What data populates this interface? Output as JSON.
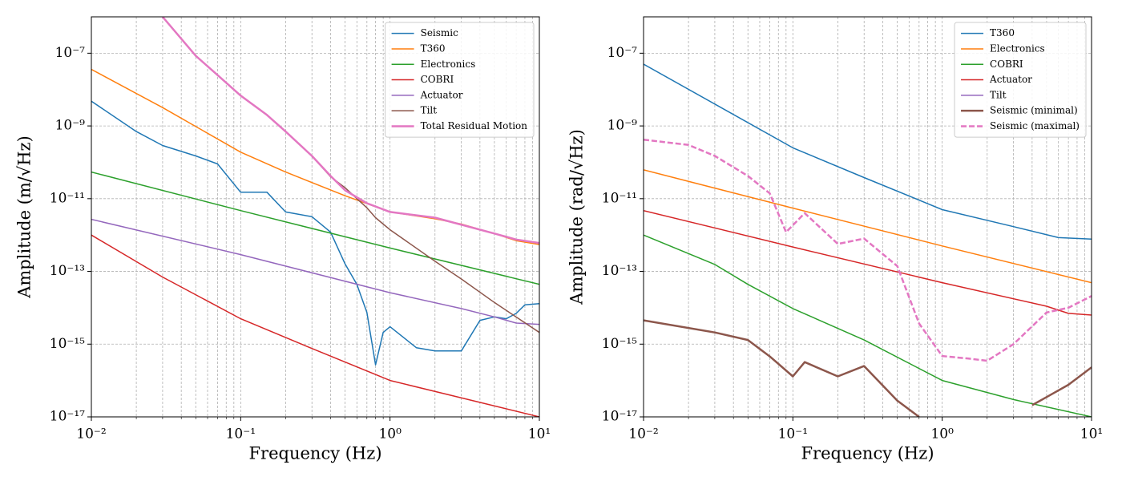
{
  "chart_data": [
    {
      "type": "line",
      "xlabel": "Frequency (Hz)",
      "ylabel": "Amplitude (m/√Hz)",
      "xscale": "log",
      "yscale": "log",
      "xlim": [
        0.01,
        10
      ],
      "ylim": [
        1e-17,
        1e-06
      ],
      "xticks": [
        {
          "value": 0.01,
          "label": "10⁻²"
        },
        {
          "value": 0.1,
          "label": "10⁻¹"
        },
        {
          "value": 1,
          "label": "10⁰"
        },
        {
          "value": 10,
          "label": "10¹"
        }
      ],
      "yticks": [
        {
          "value": 1e-17,
          "label": "10⁻¹⁷"
        },
        {
          "value": 1e-15,
          "label": "10⁻¹⁵"
        },
        {
          "value": 1e-13,
          "label": "10⁻¹³"
        },
        {
          "value": 1e-11,
          "label": "10⁻¹¹"
        },
        {
          "value": 1e-09,
          "label": "10⁻⁹"
        },
        {
          "value": 1e-07,
          "label": "10⁻⁷"
        }
      ],
      "grid": true,
      "minor_grid": true,
      "legend": "upper right",
      "series": [
        {
          "name": "Seismic",
          "color": "#1f77b4",
          "linewidth": 1.5,
          "x": [
            0.01,
            0.02,
            0.03,
            0.05,
            0.07,
            0.1,
            0.15,
            0.2,
            0.3,
            0.4,
            0.5,
            0.6,
            0.7,
            0.8,
            0.9,
            1,
            1.5,
            2,
            3,
            4,
            5,
            6,
            7,
            8,
            10
          ],
          "values": [
            4.8e-09,
            7e-10,
            2.9e-10,
            1.5e-10,
            9e-11,
            1.5e-11,
            1.5e-11,
            4.3e-12,
            3.2e-12,
            1.2e-12,
            1.6e-13,
            4.4e-14,
            7.4e-15,
            2.7e-16,
            2.1e-15,
            3e-15,
            8e-16,
            6.5e-16,
            6.5e-16,
            4.5e-15,
            5.6e-15,
            5e-15,
            7e-15,
            1.2e-14,
            1.3e-14
          ]
        },
        {
          "name": "T360",
          "color": "#ff7f0e",
          "linewidth": 1.5,
          "x": [
            0.01,
            0.03,
            0.1,
            0.2,
            0.5,
            1,
            2,
            3,
            5,
            7,
            10
          ],
          "values": [
            3.6e-08,
            3.2e-09,
            1.9e-10,
            5.4e-11,
            1.2e-11,
            4.3e-12,
            2.8e-12,
            2e-12,
            1.1e-12,
            7e-13,
            5.5e-13
          ]
        },
        {
          "name": "Electronics",
          "color": "#2ca02c",
          "linewidth": 1.5,
          "x": [
            0.01,
            0.1,
            1,
            10
          ],
          "values": [
            5.4e-11,
            4.7e-12,
            4.4e-13,
            4.4e-14
          ]
        },
        {
          "name": "COBRI",
          "color": "#d62728",
          "linewidth": 1.5,
          "x": [
            0.01,
            0.03,
            0.1,
            0.3,
            1,
            10
          ],
          "values": [
            1e-12,
            7e-14,
            5e-15,
            7.6e-16,
            1e-16,
            1e-17
          ]
        },
        {
          "name": "Actuator",
          "color": "#9467bd",
          "linewidth": 1.5,
          "x": [
            0.01,
            0.1,
            1,
            3,
            5,
            7,
            10
          ],
          "values": [
            2.7e-12,
            2.9e-13,
            2.6e-14,
            9.5e-15,
            5.6e-15,
            3.8e-15,
            3.5e-15
          ]
        },
        {
          "name": "Tilt",
          "color": "#8c564b",
          "linewidth": 1.5,
          "x": [
            0.03,
            0.05,
            0.07,
            0.1,
            0.15,
            0.2,
            0.3,
            0.4,
            0.5,
            0.6,
            0.7,
            0.8,
            0.9,
            1,
            2,
            3,
            5,
            10
          ],
          "values": [
            1e-06,
            8.5e-08,
            2.5e-08,
            6.8e-09,
            2e-09,
            7e-10,
            1.5e-10,
            4e-11,
            2e-11,
            1e-11,
            5.6e-12,
            3e-12,
            2e-12,
            1.4e-12,
            1.9e-13,
            6.2e-14,
            1.4e-14,
            2.1e-15
          ]
        },
        {
          "name": "Total Residual Motion",
          "color": "#e377c2",
          "linewidth": 2.5,
          "x": [
            0.03,
            0.05,
            0.07,
            0.1,
            0.15,
            0.2,
            0.3,
            0.4,
            0.5,
            0.7,
            1,
            2,
            5,
            7,
            10
          ],
          "values": [
            1e-06,
            8.5e-08,
            2.5e-08,
            6.8e-09,
            2e-09,
            7e-10,
            1.5e-10,
            4.2e-11,
            1.7e-11,
            7.5e-12,
            4.3e-12,
            3e-12,
            1.1e-12,
            7.5e-13,
            6e-13
          ]
        }
      ]
    },
    {
      "type": "line",
      "xlabel": "Frequency (Hz)",
      "ylabel": "Amplitude (rad/√Hz)",
      "xscale": "log",
      "yscale": "log",
      "xlim": [
        0.01,
        10
      ],
      "ylim": [
        1e-17,
        1e-06
      ],
      "xticks": [
        {
          "value": 0.01,
          "label": "10⁻²"
        },
        {
          "value": 0.1,
          "label": "10⁻¹"
        },
        {
          "value": 1,
          "label": "10⁰"
        },
        {
          "value": 10,
          "label": "10¹"
        }
      ],
      "yticks": [
        {
          "value": 1e-17,
          "label": "10⁻¹⁷"
        },
        {
          "value": 1e-15,
          "label": "10⁻¹⁵"
        },
        {
          "value": 1e-13,
          "label": "10⁻¹³"
        },
        {
          "value": 1e-11,
          "label": "10⁻¹¹"
        },
        {
          "value": 1e-09,
          "label": "10⁻⁹"
        },
        {
          "value": 1e-07,
          "label": "10⁻⁷"
        }
      ],
      "grid": true,
      "minor_grid": true,
      "legend": "upper right",
      "series": [
        {
          "name": "T360",
          "color": "#1f77b4",
          "linewidth": 1.5,
          "x": [
            0.01,
            0.03,
            0.1,
            0.3,
            1,
            3,
            6,
            10
          ],
          "values": [
            5e-08,
            4e-09,
            2.5e-10,
            3.8e-11,
            5e-12,
            1.7e-12,
            8.5e-13,
            7.7e-13
          ]
        },
        {
          "name": "Electronics",
          "color": "#ff7f0e",
          "linewidth": 1.5,
          "x": [
            0.01,
            0.1,
            1,
            10
          ],
          "values": [
            6.2e-11,
            5.5e-12,
            5e-13,
            4.9e-14
          ]
        },
        {
          "name": "COBRI",
          "color": "#2ca02c",
          "linewidth": 1.5,
          "x": [
            0.01,
            0.03,
            0.05,
            0.1,
            0.3,
            1,
            3,
            10
          ],
          "values": [
            1e-12,
            1.55e-13,
            4.4e-14,
            9.5e-15,
            1.3e-15,
            1e-16,
            3e-17,
            1e-17
          ]
        },
        {
          "name": "Actuator",
          "color": "#d62728",
          "linewidth": 1.5,
          "x": [
            0.01,
            0.1,
            1,
            5,
            7,
            10
          ],
          "values": [
            4.7e-12,
            4.7e-13,
            4.9e-14,
            1.1e-14,
            7e-15,
            6.3e-15
          ]
        },
        {
          "name": "Tilt",
          "color": "#9467bd",
          "linewidth": 1.5,
          "x": [
            0.01,
            10
          ],
          "values": [
            null,
            null
          ]
        },
        {
          "name": "Seismic (minimal)",
          "color": "#8c564b",
          "linewidth": 2.5,
          "x": [
            0.01,
            0.03,
            0.05,
            0.07,
            0.1,
            0.12,
            0.2,
            0.3,
            0.5,
            0.7,
            1,
            2,
            4,
            5,
            7,
            10
          ],
          "values": [
            4.5e-15,
            2.1e-15,
            1.3e-15,
            4.6e-16,
            1.3e-16,
            3.2e-16,
            1.3e-16,
            2.5e-16,
            2.8e-17,
            1e-17,
            null,
            null,
            2.1e-17,
            3.5e-17,
            7.6e-17,
            2.3e-16
          ]
        },
        {
          "name": "Seismic (maximal)",
          "color": "#e377c2",
          "linewidth": 2.5,
          "linestyle": "dashed",
          "x": [
            0.01,
            0.02,
            0.03,
            0.05,
            0.07,
            0.09,
            0.12,
            0.2,
            0.3,
            0.5,
            0.7,
            1,
            1.5,
            2,
            3,
            5,
            7,
            10
          ],
          "values": [
            4.2e-10,
            3e-10,
            1.5e-10,
            4.2e-11,
            1.4e-11,
            1.2e-12,
            4e-12,
            5.7e-13,
            8e-13,
            1.4e-13,
            3.7e-15,
            4.7e-16,
            4e-16,
            3.5e-16,
            1e-15,
            7.4e-15,
            1e-14,
            2.1e-14
          ]
        }
      ]
    }
  ]
}
